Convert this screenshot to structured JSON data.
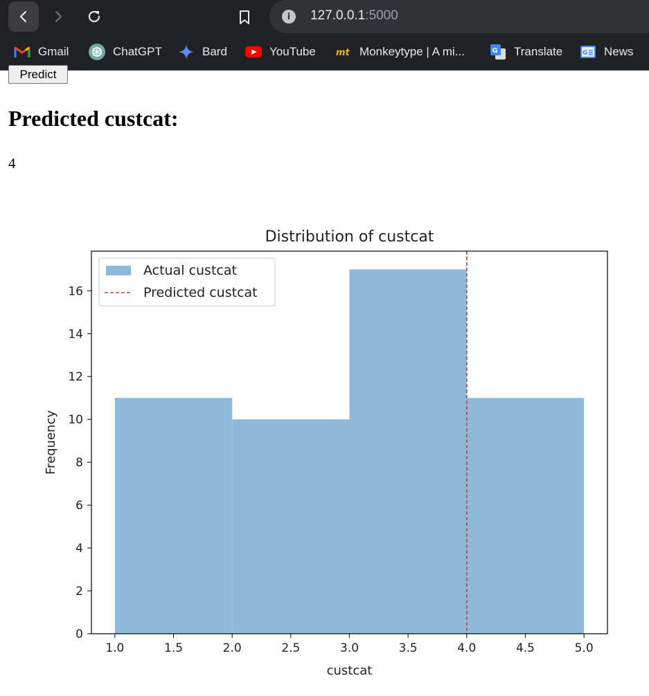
{
  "browser": {
    "url_host": "127.0.0.1",
    "url_port": ":5000",
    "bookmarks": [
      {
        "label": "Gmail",
        "icon": "gmail-icon"
      },
      {
        "label": "ChatGPT",
        "icon": "chatgpt-icon"
      },
      {
        "label": "Bard",
        "icon": "bard-icon"
      },
      {
        "label": "YouTube",
        "icon": "youtube-icon"
      },
      {
        "label": "Monkeytype | A mi...",
        "icon": "monkeytype-icon"
      },
      {
        "label": "Translate",
        "icon": "translate-icon"
      },
      {
        "label": "News",
        "icon": "news-icon"
      }
    ]
  },
  "page": {
    "predict_button": "Predict",
    "heading": "Predicted custcat:",
    "value": "4"
  },
  "colors": {
    "bar": "#8fb9d9",
    "predicted_line": "#e8302c",
    "chrome_bg": "#202124"
  },
  "chart_data": {
    "type": "bar",
    "title": "Distribution of custcat",
    "xlabel": "custcat",
    "ylabel": "Frequency",
    "bins": [
      [
        1.0,
        2.0
      ],
      [
        2.0,
        3.0
      ],
      [
        3.0,
        4.0
      ],
      [
        4.0,
        5.0
      ]
    ],
    "values": [
      11,
      10,
      17,
      11
    ],
    "predicted_value": 4.0,
    "xlim": [
      0.8,
      5.2
    ],
    "ylim": [
      0,
      17.85
    ],
    "xticks": [
      "1.0",
      "1.5",
      "2.0",
      "2.5",
      "3.0",
      "3.5",
      "4.0",
      "4.5",
      "5.0"
    ],
    "yticks": [
      "0",
      "2",
      "4",
      "6",
      "8",
      "10",
      "12",
      "14",
      "16"
    ],
    "legend": {
      "placement": "top-left",
      "entries": [
        "Actual custcat",
        "Predicted custcat"
      ]
    },
    "grid": false
  }
}
